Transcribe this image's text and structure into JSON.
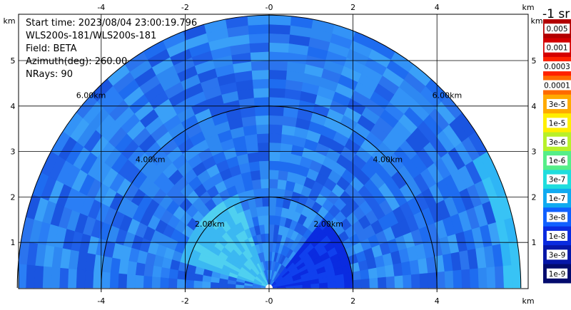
{
  "info": {
    "start_time": "Start time: 2023/08/04 23:00:19.796",
    "instrument": "WLS200s-181/WLS200s-181",
    "field": "Field: BETA",
    "azimuth": "Azimuth(deg): 260.00",
    "nrays": "NRays: 90"
  },
  "colorbar": {
    "title": "-1 sr",
    "labels": [
      "0.005",
      "0.001",
      "0.0003",
      "0.0001",
      "3e-5",
      "1e-5",
      "3e-6",
      "1e-6",
      "3e-7",
      "1e-7",
      "3e-8",
      "1e-8",
      "3e-9",
      "1e-9"
    ],
    "colors": [
      "#b30000",
      "#d40000",
      "#ff2200",
      "#ff6a00",
      "#ffaa00",
      "#ffee00",
      "#b8f02a",
      "#55ee88",
      "#20dddd",
      "#10aaf0",
      "#1060ff",
      "#0a2be0",
      "#0616a8",
      "#030b6e"
    ]
  },
  "chart_data": {
    "type": "heatmap",
    "projection": "RHI (range-height scan)",
    "x_unit": "km",
    "y_unit": "km",
    "xlim": [
      -5.9,
      6.0
    ],
    "ylim": [
      0,
      6.0
    ],
    "x_ticks": [
      -4,
      -2,
      0,
      2,
      4
    ],
    "y_ticks": [
      1,
      2,
      3,
      4,
      5
    ],
    "range_rings_km": [
      2,
      4,
      6
    ],
    "ring_labels": [
      "2.00km",
      "4.00km",
      "6.00km"
    ],
    "max_range_km": 6.0,
    "grid": true,
    "tick_labels_x": [
      "-4",
      "-2",
      "-0",
      "2",
      "4"
    ],
    "tick_labels_y": [
      "1",
      "2",
      "3",
      "4",
      "5"
    ]
  }
}
